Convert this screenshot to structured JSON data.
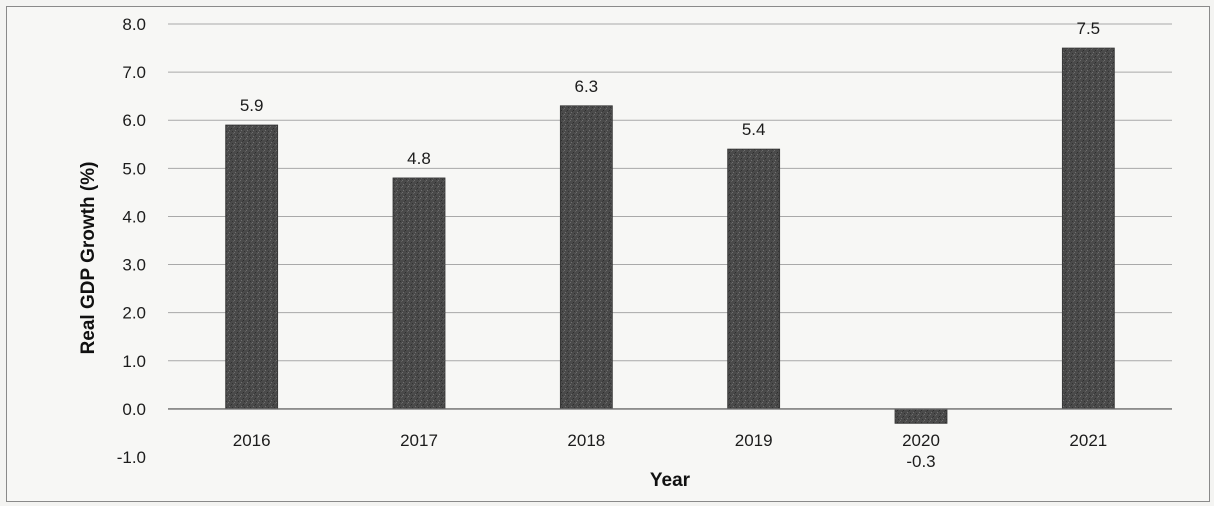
{
  "chart_data": {
    "type": "bar",
    "categories": [
      "2016",
      "2017",
      "2018",
      "2019",
      "2020",
      "2021"
    ],
    "values": [
      5.9,
      4.8,
      6.3,
      5.4,
      -0.3,
      7.5
    ],
    "data_labels": [
      "5.9",
      "4.8",
      "6.3",
      "5.4",
      "-0.3",
      "7.5"
    ],
    "title": "",
    "xlabel": "Year",
    "ylabel": "Real GDP Growth (%)",
    "ylim": [
      -1.0,
      8.0
    ],
    "yticks": [
      "-1.0",
      "0.0",
      "1.0",
      "2.0",
      "3.0",
      "4.0",
      "5.0",
      "6.0",
      "7.0",
      "8.0"
    ],
    "grid": true,
    "legend": "none",
    "bar_color": "#4a4a4a"
  }
}
